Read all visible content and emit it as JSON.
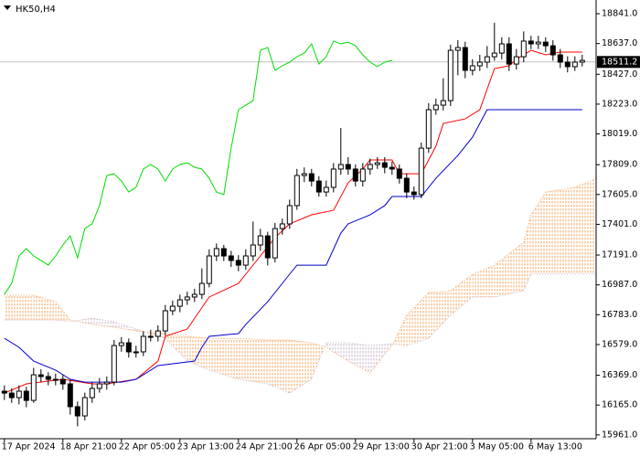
{
  "chart_data": {
    "type": "candlestick",
    "title": "HK50,H4",
    "ylim": [
      15935,
      18935
    ],
    "xlim": [
      -0.6,
      80.9
    ],
    "yticks": [
      {
        "value": 18841,
        "label": "18841.0"
      },
      {
        "value": 18637,
        "label": "18637.0"
      },
      {
        "value": 18427,
        "label": "18427.0"
      },
      {
        "value": 18223,
        "label": "18223.0"
      },
      {
        "value": 18019,
        "label": "18019.0"
      },
      {
        "value": 17809,
        "label": "17809.0"
      },
      {
        "value": 17605,
        "label": "17605.0"
      },
      {
        "value": 17401,
        "label": "17401.0"
      },
      {
        "value": 17191,
        "label": "17191.0"
      },
      {
        "value": 16987,
        "label": "16987.0"
      },
      {
        "value": 16783,
        "label": "16783.0"
      },
      {
        "value": 16579,
        "label": "16579.0"
      },
      {
        "value": 16369,
        "label": "16369.0"
      },
      {
        "value": 16165,
        "label": "16165.0"
      },
      {
        "value": 15961,
        "label": "15961.0"
      }
    ],
    "xticks": [
      {
        "value": 0,
        "label": "17 Apr 2024"
      },
      {
        "value": 8,
        "label": "18 Apr 21:00"
      },
      {
        "value": 16,
        "label": "22 Apr 05:00"
      },
      {
        "value": 24,
        "label": "23 Apr 13:00"
      },
      {
        "value": 32,
        "label": "24 Apr 21:00"
      },
      {
        "value": 40,
        "label": "26 Apr 05:00"
      },
      {
        "value": 48,
        "label": "29 Apr 13:00"
      },
      {
        "value": 56,
        "label": "30 Apr 21:00"
      },
      {
        "value": 64,
        "label": "3 May 05:00"
      },
      {
        "value": 72,
        "label": "6 May 13:00"
      }
    ],
    "current_price": 18511.2,
    "open": [
      16260,
      16247,
      16216,
      16260,
      16197,
      16372,
      16360,
      16341,
      16341,
      16310,
      16154,
      16091,
      16216,
      16279,
      16310,
      16322,
      16572,
      16591,
      16529,
      16529,
      16635,
      16635,
      16672,
      16810,
      16841,
      16885,
      16904,
      16922,
      16997,
      17185,
      17235,
      17185,
      17154,
      17122,
      17185,
      17260,
      17322,
      17172,
      17372,
      17404,
      17529,
      17735,
      17747,
      17697,
      17622,
      17654,
      17779,
      17810,
      17779,
      17697,
      17779,
      17810,
      17822,
      17791,
      17779,
      17716,
      17622,
      17604,
      17922,
      18185,
      18216,
      18247,
      18591,
      18610,
      18454,
      18485,
      18510,
      18547,
      18572,
      18635,
      18497,
      18547,
      18654,
      18635,
      18647,
      18622,
      18560,
      18510,
      18479,
      18510
    ],
    "high": [
      16300,
      16280,
      16300,
      16290,
      16420,
      16410,
      16390,
      16380,
      16370,
      16340,
      16190,
      16250,
      16320,
      16350,
      16360,
      16610,
      16630,
      16620,
      16570,
      16670,
      16680,
      16710,
      16850,
      16880,
      16920,
      16940,
      16960,
      17100,
      17230,
      17270,
      17260,
      17220,
      17190,
      17230,
      17420,
      17370,
      17350,
      17410,
      17440,
      17570,
      17780,
      17790,
      17780,
      17730,
      17700,
      17820,
      18060,
      17860,
      17810,
      17820,
      17850,
      17860,
      17860,
      17830,
      17810,
      17750,
      17660,
      17960,
      18230,
      18260,
      18400,
      18630,
      18660,
      18650,
      18530,
      18560,
      18620,
      18780,
      18680,
      18680,
      18600,
      18720,
      18690,
      18690,
      18680,
      18660,
      18600,
      18550,
      18550,
      18560
    ],
    "low": [
      16200,
      16180,
      16170,
      16150,
      16180,
      16320,
      16300,
      16300,
      16270,
      16100,
      16020,
      16060,
      16180,
      16250,
      16270,
      16300,
      16530,
      16490,
      16490,
      16500,
      16600,
      16600,
      16640,
      16780,
      16800,
      16850,
      16870,
      16890,
      16970,
      17150,
      17150,
      17110,
      17080,
      17090,
      17150,
      17220,
      17120,
      17140,
      17330,
      17370,
      17500,
      17690,
      17660,
      17590,
      17590,
      17620,
      17740,
      17740,
      17660,
      17660,
      17740,
      17780,
      17750,
      17740,
      17680,
      17580,
      17570,
      17580,
      17890,
      18150,
      18180,
      18210,
      18420,
      18400,
      18420,
      18450,
      18470,
      18520,
      18530,
      18450,
      18460,
      18510,
      18600,
      18600,
      18580,
      18520,
      18470,
      18440,
      18450,
      18480
    ],
    "close": [
      16247,
      16216,
      16260,
      16197,
      16372,
      16360,
      16341,
      16341,
      16310,
      16154,
      16091,
      16216,
      16279,
      16310,
      16322,
      16572,
      16591,
      16529,
      16529,
      16635,
      16635,
      16672,
      16810,
      16841,
      16885,
      16904,
      16922,
      16997,
      17185,
      17235,
      17185,
      17154,
      17122,
      17185,
      17260,
      17322,
      17172,
      17372,
      17404,
      17529,
      17735,
      17747,
      17697,
      17622,
      17654,
      17779,
      17810,
      17779,
      17697,
      17779,
      17810,
      17822,
      17791,
      17779,
      17716,
      17622,
      17604,
      17922,
      18185,
      18216,
      18247,
      18591,
      18610,
      18454,
      18485,
      18510,
      18547,
      18572,
      18635,
      18497,
      18547,
      18654,
      18635,
      18647,
      18622,
      18560,
      18510,
      18479,
      18510,
      18522
    ],
    "tenkan": {
      "color": "#ff0000",
      "x": [
        0,
        3,
        8,
        12,
        14,
        18,
        21,
        22,
        25,
        28,
        32,
        33,
        37,
        39,
        42,
        45,
        47,
        49,
        50,
        53,
        54,
        57,
        59,
        60,
        63,
        65,
        67,
        69,
        70,
        72,
        74,
        76,
        79
      ],
      "values": [
        16247,
        16310,
        16341,
        16310,
        16310,
        16341,
        16466,
        16635,
        16685,
        16904,
        16997,
        17060,
        17310,
        17404,
        17466,
        17497,
        17685,
        17779,
        17841,
        17841,
        17747,
        17747,
        17935,
        18091,
        18122,
        18185,
        18466,
        18485,
        18529,
        18591,
        18560,
        18579,
        18579
      ]
    },
    "kijun": {
      "color": "#0000cc",
      "x": [
        0,
        2,
        4,
        7,
        9,
        11,
        14,
        16,
        18,
        21,
        26,
        27,
        28,
        32,
        33,
        36,
        39,
        40,
        44,
        46,
        47,
        50,
        52,
        53,
        57,
        59,
        62,
        64,
        66,
        79
      ],
      "values": [
        16622,
        16560,
        16466,
        16404,
        16341,
        16322,
        16322,
        16322,
        16341,
        16435,
        16466,
        16560,
        16635,
        16654,
        16716,
        16872,
        17060,
        17122,
        17122,
        17341,
        17404,
        17466,
        17529,
        17591,
        17591,
        17716,
        17872,
        17997,
        18185,
        18185
      ]
    },
    "chikou": {
      "color": "#00dd00",
      "shift": 26
    },
    "cloud": {
      "color_a": "#f4a460",
      "color_b": "#c8b4c8",
      "x": [
        0,
        4,
        7,
        9,
        12,
        15,
        18,
        22,
        25,
        28,
        32,
        36,
        39,
        42,
        44,
        47,
        50,
        53,
        55,
        58,
        61,
        64,
        67,
        71,
        72,
        74,
        78,
        81
      ],
      "span_a": [
        16916,
        16916,
        16872,
        16747,
        16716,
        16697,
        16672,
        16654,
        16635,
        16622,
        16622,
        16610,
        16610,
        16591,
        16560,
        16466,
        16385,
        16572,
        16779,
        16935,
        16947,
        17060,
        17122,
        17279,
        17466,
        17622,
        17654,
        17716
      ],
      "span_b": [
        16747,
        16747,
        16747,
        16735,
        16760,
        16735,
        16685,
        16622,
        16466,
        16404,
        16341,
        16310,
        16247,
        16341,
        16591,
        16591,
        16572,
        16585,
        16572,
        16622,
        16779,
        16904,
        16904,
        16947,
        17060,
        17060,
        17060,
        17060
      ]
    }
  }
}
